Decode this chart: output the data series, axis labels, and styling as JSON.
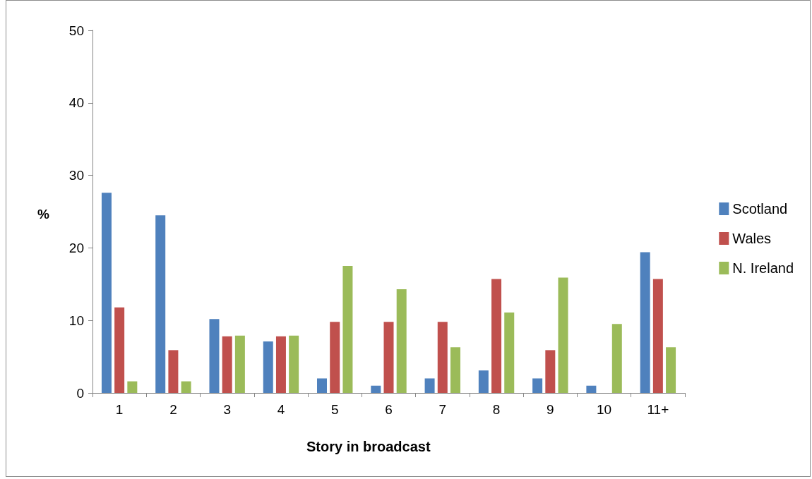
{
  "chart_data": {
    "type": "bar",
    "xlabel": "Story in broadcast",
    "ylabel": "%",
    "categories": [
      "1",
      "2",
      "3",
      "4",
      "5",
      "6",
      "7",
      "8",
      "9",
      "10",
      "11+"
    ],
    "series": [
      {
        "name": "Scotland",
        "color": "#4f81bd",
        "values": [
          27.6,
          24.5,
          10.2,
          7.1,
          2.0,
          1.0,
          2.0,
          3.1,
          2.0,
          1.0,
          19.4
        ]
      },
      {
        "name": "Wales",
        "color": "#c0504d",
        "values": [
          11.8,
          5.9,
          7.8,
          7.8,
          9.8,
          9.8,
          9.8,
          15.7,
          5.9,
          0,
          15.7
        ]
      },
      {
        "name": "N. Ireland",
        "color": "#9bbb59",
        "values": [
          1.6,
          1.6,
          7.9,
          7.9,
          17.5,
          14.3,
          6.3,
          11.1,
          15.9,
          9.5,
          6.3
        ]
      }
    ],
    "ylim": [
      0,
      50
    ],
    "yticks": [
      0,
      10,
      20,
      30,
      40,
      50
    ],
    "grid": false,
    "legend": "right"
  }
}
